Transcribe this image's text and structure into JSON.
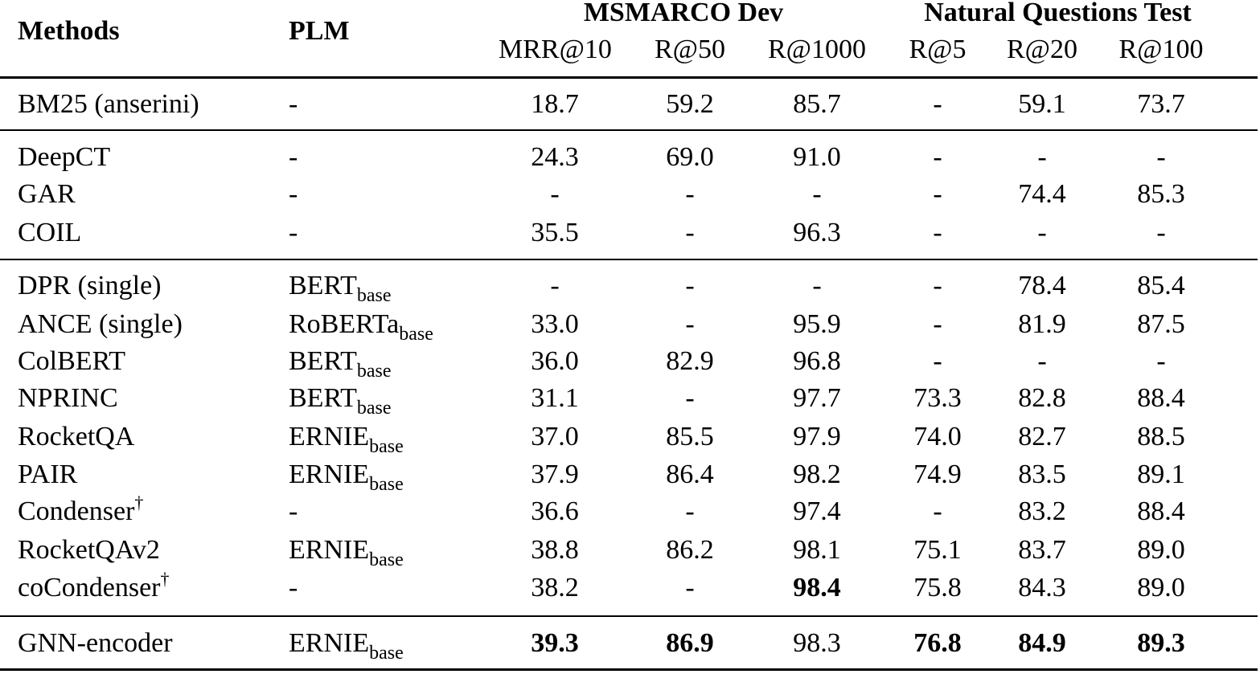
{
  "header": {
    "methods": "Methods",
    "plm": "PLM",
    "group_msmarco": "MSMARCO Dev",
    "group_nq": "Natural Questions Test",
    "metrics": [
      "MRR@10",
      "R@50",
      "R@1000",
      "R@5",
      "R@20",
      "R@100"
    ]
  },
  "rows": [
    {
      "method": "BM25 (anserini)",
      "sup": "",
      "plm": "-",
      "plm_sub": "",
      "values": [
        "18.7",
        "59.2",
        "85.7",
        "-",
        "59.1",
        "73.7"
      ],
      "bold": [
        false,
        false,
        false,
        false,
        false,
        false
      ]
    },
    {
      "method": "DeepCT",
      "sup": "",
      "plm": "-",
      "plm_sub": "",
      "values": [
        "24.3",
        "69.0",
        "91.0",
        "-",
        "-",
        "-"
      ],
      "bold": [
        false,
        false,
        false,
        false,
        false,
        false
      ]
    },
    {
      "method": "GAR",
      "sup": "",
      "plm": "-",
      "plm_sub": "",
      "values": [
        "-",
        "-",
        "-",
        "-",
        "74.4",
        "85.3"
      ],
      "bold": [
        false,
        false,
        false,
        false,
        false,
        false
      ]
    },
    {
      "method": "COIL",
      "sup": "",
      "plm": "-",
      "plm_sub": "",
      "values": [
        "35.5",
        "-",
        "96.3",
        "-",
        "-",
        "-"
      ],
      "bold": [
        false,
        false,
        false,
        false,
        false,
        false
      ]
    },
    {
      "method": "DPR (single)",
      "sup": "",
      "plm": "BERT",
      "plm_sub": "base",
      "values": [
        "-",
        "-",
        "-",
        "-",
        "78.4",
        "85.4"
      ],
      "bold": [
        false,
        false,
        false,
        false,
        false,
        false
      ]
    },
    {
      "method": "ANCE (single)",
      "sup": "",
      "plm": "RoBERTa",
      "plm_sub": "base",
      "values": [
        "33.0",
        "-",
        "95.9",
        "-",
        "81.9",
        "87.5"
      ],
      "bold": [
        false,
        false,
        false,
        false,
        false,
        false
      ]
    },
    {
      "method": "ColBERT",
      "sup": "",
      "plm": "BERT",
      "plm_sub": "base",
      "values": [
        "36.0",
        "82.9",
        "96.8",
        "-",
        "-",
        "-"
      ],
      "bold": [
        false,
        false,
        false,
        false,
        false,
        false
      ]
    },
    {
      "method": "NPRINC",
      "sup": "",
      "plm": "BERT",
      "plm_sub": "base",
      "values": [
        "31.1",
        "-",
        "97.7",
        "73.3",
        "82.8",
        "88.4"
      ],
      "bold": [
        false,
        false,
        false,
        false,
        false,
        false
      ]
    },
    {
      "method": "RocketQA",
      "sup": "",
      "plm": "ERNIE",
      "plm_sub": "base",
      "values": [
        "37.0",
        "85.5",
        "97.9",
        "74.0",
        "82.7",
        "88.5"
      ],
      "bold": [
        false,
        false,
        false,
        false,
        false,
        false
      ]
    },
    {
      "method": "PAIR",
      "sup": "",
      "plm": "ERNIE",
      "plm_sub": "base",
      "values": [
        "37.9",
        "86.4",
        "98.2",
        "74.9",
        "83.5",
        "89.1"
      ],
      "bold": [
        false,
        false,
        false,
        false,
        false,
        false
      ]
    },
    {
      "method": "Condenser",
      "sup": "†",
      "plm": "-",
      "plm_sub": "",
      "values": [
        "36.6",
        "-",
        "97.4",
        "-",
        "83.2",
        "88.4"
      ],
      "bold": [
        false,
        false,
        false,
        false,
        false,
        false
      ]
    },
    {
      "method": "RocketQAv2",
      "sup": "",
      "plm": "ERNIE",
      "plm_sub": "base",
      "values": [
        "38.8",
        "86.2",
        "98.1",
        "75.1",
        "83.7",
        "89.0"
      ],
      "bold": [
        false,
        false,
        false,
        false,
        false,
        false
      ]
    },
    {
      "method": "coCondenser",
      "sup": "†",
      "plm": "-",
      "plm_sub": "",
      "values": [
        "38.2",
        "-",
        "98.4",
        "75.8",
        "84.3",
        "89.0"
      ],
      "bold": [
        false,
        false,
        true,
        false,
        false,
        false
      ]
    },
    {
      "method": "GNN-encoder",
      "sup": "",
      "plm": "ERNIE",
      "plm_sub": "base",
      "values": [
        "39.3",
        "86.9",
        "98.3",
        "76.8",
        "84.9",
        "89.3"
      ],
      "bold": [
        true,
        true,
        false,
        true,
        true,
        true
      ]
    }
  ]
}
